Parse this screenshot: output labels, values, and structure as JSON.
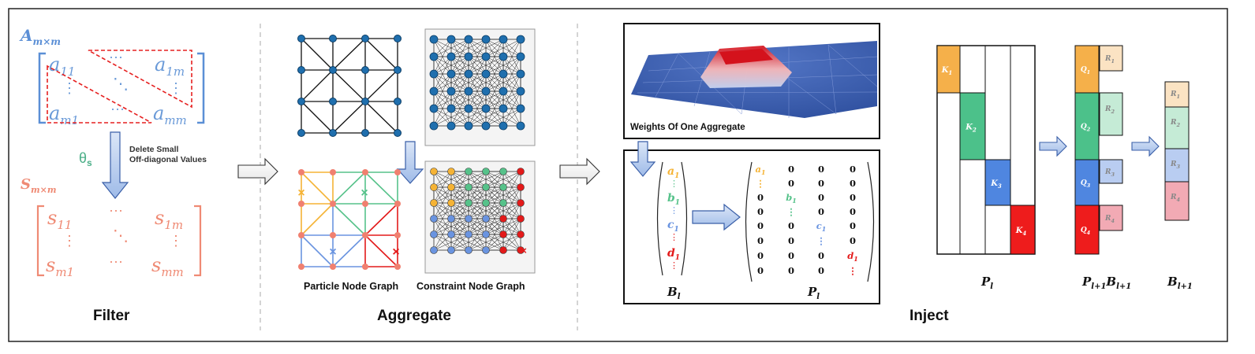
{
  "sections": {
    "filter": "Filter",
    "aggregate": "Aggregate",
    "inject": "Inject"
  },
  "filter": {
    "matrix_a_base": "A",
    "matrix_a_sub": "m×m",
    "a_entries": [
      "a11",
      "a1m",
      "am1",
      "amm"
    ],
    "theta_base": "θ",
    "theta_sub": "s",
    "note_line1": "Delete Small",
    "note_line2": "Off-diagonal Values",
    "matrix_s_base": "S",
    "matrix_s_sub": "m×m",
    "dots_h": "···",
    "dots_v": "⋮",
    "dots_d": "⋱",
    "colors": {
      "a": "#5b8fd6",
      "s": "#ef8a74",
      "theta": "#4caf88",
      "dash": "#e62020"
    }
  },
  "aggregate": {
    "particle_caption": "Particle Node Graph",
    "constraint_caption": "Constraint Node Graph",
    "mark_x": "×",
    "colors": {
      "node": "#1f6fae",
      "particle": "#f08070",
      "orange": "#f5b335",
      "green": "#56c28a",
      "blue": "#6a94e0",
      "red": "#e31a1a"
    }
  },
  "inject": {
    "weights_caption": "Weights Of One Aggregate",
    "B_base": "B",
    "B_sub": "l",
    "P_base": "P",
    "P_sub": "l",
    "Bl_entries": [
      {
        "base": "a",
        "sub": "1",
        "color": "#f5b335"
      },
      {
        "base": "b",
        "sub": "1",
        "color": "#56c28a"
      },
      {
        "base": "c",
        "sub": "1",
        "color": "#6a94e0"
      },
      {
        "base": "d",
        "sub": "1",
        "color": "#e31a1a"
      }
    ],
    "zero": "0",
    "K_labels": [
      "K1",
      "K2",
      "K3",
      "K4"
    ],
    "Q_labels": [
      "Q1",
      "Q2",
      "Q3",
      "Q4"
    ],
    "R_labels": [
      "R1",
      "R2",
      "R3",
      "R4"
    ],
    "bottom_labels": {
      "Pl": "P",
      "Pl_sub": "l",
      "Pl1": "P",
      "Pl1_sub": "l+1",
      "Bl1": "B",
      "Bl1_sub": "l+1"
    },
    "colors": {
      "k1": "#f5b04a",
      "k2": "#4cc18a",
      "k3": "#4f86e0",
      "k4": "#ee1c1c",
      "r1": "#fbe3c3",
      "r2": "#c5ebd6",
      "r3": "#b9cdf1",
      "r4": "#f2aab4"
    }
  }
}
